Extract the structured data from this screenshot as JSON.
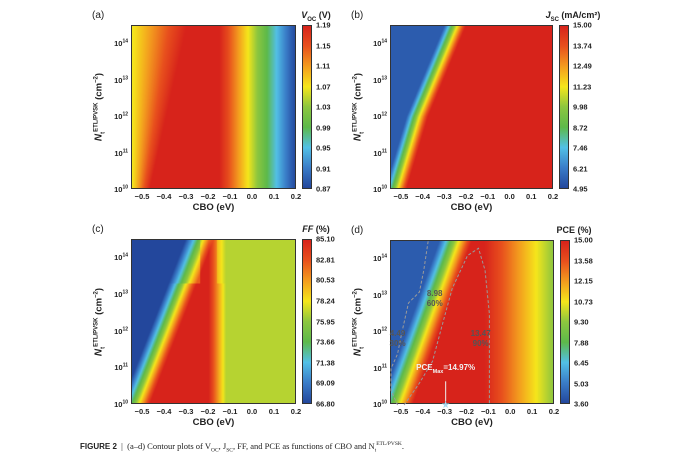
{
  "chart_data": [
    {
      "panel": "(a)",
      "type": "heatmap",
      "title": "V",
      "title_sub": "OC",
      "title_suffix": " (V)",
      "xlabel": "CBO (eV)",
      "ylabel_main": "N",
      "ylabel_sub": "t",
      "ylabel_sup": "ETL/PVSK",
      "ylabel_unit": " (cm",
      "ylabel_unit_sup": "−2",
      "ylabel_close": ")",
      "xlim": [
        -0.55,
        0.2
      ],
      "ylim_log10": [
        10,
        14.5
      ],
      "xticks": [
        "−0.5",
        "−0.4",
        "−0.3",
        "−0.2",
        "−0.1",
        "0.0",
        "0.1",
        "0.2"
      ],
      "yticks_base": "10",
      "yticks_exp": [
        "10",
        "11",
        "12",
        "13",
        "14"
      ],
      "colorbar": [
        "1.19",
        "1.15",
        "1.11",
        "1.07",
        "1.03",
        "0.99",
        "0.95",
        "0.91",
        "0.87"
      ],
      "range": [
        0.87,
        1.19
      ]
    },
    {
      "panel": "(b)",
      "type": "heatmap",
      "title": "J",
      "title_sub": "SC",
      "title_suffix": " (mA/cm²)",
      "xlabel": "CBO (eV)",
      "ylabel_main": "N",
      "ylabel_sub": "t",
      "ylabel_sup": "ETL/PVSK",
      "ylabel_unit": " (cm",
      "ylabel_unit_sup": "−2",
      "ylabel_close": ")",
      "xlim": [
        -0.55,
        0.2
      ],
      "ylim_log10": [
        10,
        14.5
      ],
      "xticks": [
        "−0.5",
        "−0.4",
        "−0.3",
        "−0.2",
        "−0.1",
        "0.0",
        "0.1",
        "0.2"
      ],
      "yticks_base": "10",
      "yticks_exp": [
        "10",
        "11",
        "12",
        "13",
        "14"
      ],
      "colorbar": [
        "15.00",
        "13.74",
        "12.49",
        "11.23",
        "9.98",
        "8.72",
        "7.46",
        "6.21",
        "4.95"
      ],
      "range": [
        4.95,
        15.0
      ]
    },
    {
      "panel": "(c)",
      "type": "heatmap",
      "title": "FF",
      "title_sub": "",
      "title_suffix": " (%)",
      "xlabel": "CBO (eV)",
      "ylabel_main": "N",
      "ylabel_sub": "t",
      "ylabel_sup": "ETL/PVSK",
      "ylabel_unit": " (cm",
      "ylabel_unit_sup": "−2",
      "ylabel_close": ")",
      "xlim": [
        -0.55,
        0.2
      ],
      "ylim_log10": [
        10,
        14.5
      ],
      "xticks": [
        "−0.5",
        "−0.4",
        "−0.3",
        "−0.2",
        "−0.1",
        "0.0",
        "0.1",
        "0.2"
      ],
      "yticks_base": "10",
      "yticks_exp": [
        "10",
        "11",
        "12",
        "13",
        "14"
      ],
      "colorbar": [
        "85.10",
        "82.81",
        "80.53",
        "78.24",
        "75.95",
        "73.66",
        "71.38",
        "69.09",
        "66.80"
      ],
      "range": [
        66.8,
        85.1
      ]
    },
    {
      "panel": "(d)",
      "type": "heatmap",
      "title": "PCE",
      "title_sub": "",
      "title_suffix": " (%)",
      "xlabel": "CBO (eV)",
      "ylabel_main": "N",
      "ylabel_sub": "t",
      "ylabel_sup": "ETL/PVSK",
      "ylabel_unit": " (cm",
      "ylabel_unit_sup": "−2",
      "ylabel_close": ")",
      "xlim": [
        -0.55,
        0.2
      ],
      "ylim_log10": [
        10,
        14.5
      ],
      "xticks": [
        "−0.5",
        "−0.4",
        "−0.3",
        "−0.2",
        "−0.1",
        "0.0",
        "0.1",
        "0.2"
      ],
      "yticks_base": "10",
      "yticks_exp": [
        "10",
        "11",
        "12",
        "13",
        "14"
      ],
      "colorbar": [
        "15.00",
        "13.58",
        "12.15",
        "10.73",
        "9.30",
        "7.88",
        "6.45",
        "5.03",
        "3.60"
      ],
      "range": [
        3.6,
        15.0
      ],
      "annotations": {
        "c30_value": "4.49",
        "c30_pct": "30%",
        "c60_value": "8.98",
        "c60_pct": "60%",
        "c90_value": "13.47",
        "c90_pct": "90%",
        "max_label": "PCE",
        "max_sub": "Max",
        "max_value": "=14.97%",
        "max_cbo": -0.3,
        "max_nt_log10": 10
      }
    }
  ],
  "caption": {
    "label": "FIGURE 2",
    "sep": "|",
    "text1": "(a–d) Contour plots of V",
    "sub1": "OC",
    "text2": ", J",
    "sub2": "SC",
    "text3": ", FF, and PCE as functions of CBO and N",
    "sub3": "t",
    "sup3": "ETL/PVSK",
    "text4": "."
  },
  "colors": {
    "cmap": [
      "#23479c",
      "#3a7cc8",
      "#52c0e6",
      "#5db94a",
      "#8cc63f",
      "#f5e61b",
      "#f39c1e",
      "#e8501d",
      "#d7231b"
    ]
  }
}
